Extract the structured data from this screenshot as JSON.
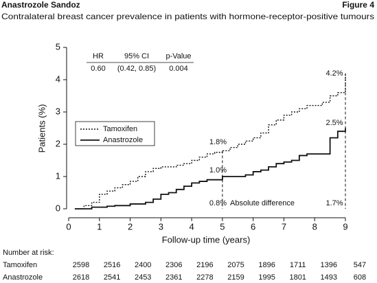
{
  "chart_data": {
    "type": "step",
    "title": "Anastrozole Sandoz",
    "figure_label": "Figure 4",
    "subtitle": "Contralateral breast cancer prevalence in patients with hormone-receptor-positive tumours",
    "x_label": "Follow-up time (years)",
    "y_label": "Patients (%)",
    "xlim": [
      0,
      9
    ],
    "xticks": [
      0,
      1,
      2,
      3,
      4,
      5,
      6,
      7,
      8,
      9
    ],
    "ylim": [
      0,
      5
    ],
    "yticks": [
      0,
      1,
      2,
      3,
      4,
      5
    ],
    "legend": "upper left",
    "x": [
      0.2,
      0.5,
      0.75,
      1,
      1.25,
      1.5,
      1.75,
      2,
      2.25,
      2.5,
      2.75,
      3,
      3.25,
      3.5,
      3.75,
      4,
      4.25,
      4.5,
      4.75,
      5,
      5.25,
      5.5,
      5.75,
      6,
      6.25,
      6.5,
      6.75,
      7,
      7.25,
      7.5,
      7.75,
      8,
      8.25,
      8.5,
      8.75,
      9
    ],
    "series": [
      {
        "name": "Tamoxifen",
        "color": "#111111",
        "dash": "2 2",
        "values": [
          0,
          0.1,
          0.2,
          0.45,
          0.55,
          0.65,
          0.75,
          0.85,
          1.0,
          1.15,
          1.25,
          1.3,
          1.3,
          1.35,
          1.4,
          1.5,
          1.6,
          1.7,
          1.75,
          1.8,
          1.9,
          2.0,
          2.1,
          2.2,
          2.35,
          2.6,
          2.75,
          2.9,
          3.0,
          3.1,
          3.2,
          3.2,
          3.3,
          3.5,
          3.6,
          4.2
        ]
      },
      {
        "name": "Anastrozole",
        "color": "#111111",
        "dash": "none",
        "values": [
          0,
          0,
          0.05,
          0.05,
          0.08,
          0.1,
          0.1,
          0.15,
          0.15,
          0.2,
          0.3,
          0.45,
          0.5,
          0.6,
          0.7,
          0.8,
          0.85,
          0.9,
          0.9,
          1.0,
          1.0,
          1.0,
          1.05,
          1.15,
          1.2,
          1.3,
          1.4,
          1.45,
          1.5,
          1.65,
          1.7,
          1.7,
          1.7,
          2.2,
          2.4,
          2.5
        ]
      }
    ],
    "vlines": [
      5,
      9
    ],
    "annotations": [
      "1.8%",
      "1.0%",
      "0.8%",
      "Absolute difference",
      "4.2%",
      "2.5%",
      "1.7%"
    ],
    "inset_table": {
      "header": [
        "HR",
        "95% CI",
        "p-Value"
      ],
      "rows": [
        [
          "0.60",
          "(0.42, 0.85)",
          "0.004"
        ]
      ]
    },
    "risk_table": {
      "title": "Number at risk:",
      "rows": [
        {
          "name": "Tamoxifen",
          "values": [
            2598,
            2516,
            2400,
            2306,
            2196,
            2075,
            1896,
            1711,
            1396,
            547
          ]
        },
        {
          "name": "Anastrozole",
          "values": [
            2618,
            2541,
            2453,
            2361,
            2278,
            2159,
            1995,
            1801,
            1493,
            608
          ]
        }
      ]
    }
  }
}
